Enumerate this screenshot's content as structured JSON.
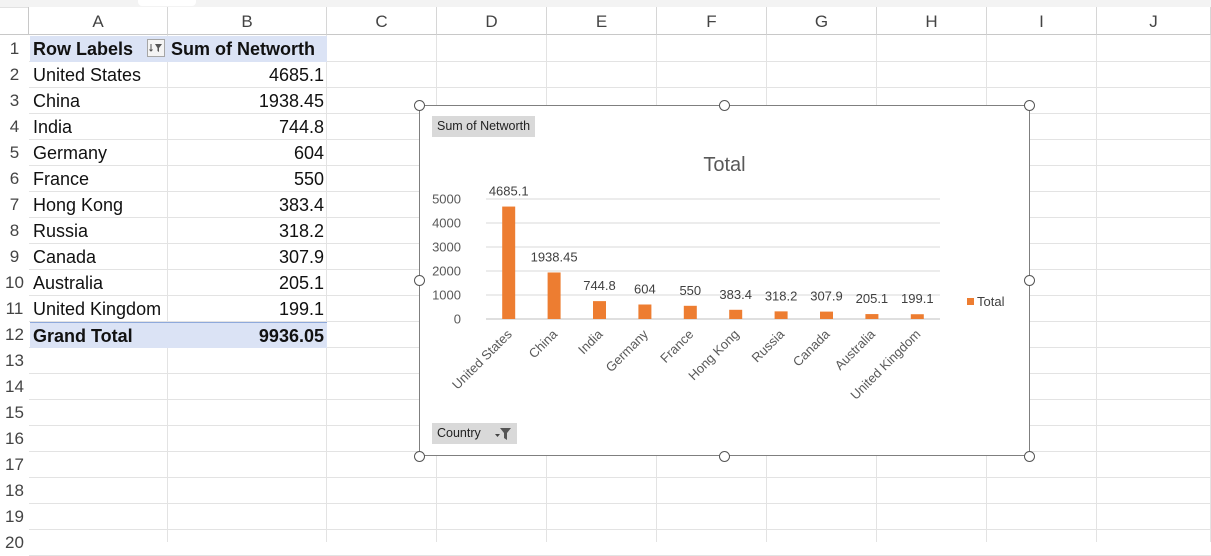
{
  "columns": [
    "A",
    "B",
    "C",
    "D",
    "E",
    "F",
    "G",
    "H",
    "I",
    "J"
  ],
  "rows": [
    "1",
    "2",
    "3",
    "4",
    "5",
    "6",
    "7",
    "8",
    "9",
    "10",
    "11",
    "12",
    "13",
    "14",
    "15",
    "16",
    "17",
    "18",
    "19",
    "20"
  ],
  "pivot": {
    "header": {
      "row_labels": "Row Labels",
      "sum_label": "Sum of Networth"
    },
    "rows": [
      {
        "label": "United States",
        "value": "4685.1"
      },
      {
        "label": "China",
        "value": "1938.45"
      },
      {
        "label": "India",
        "value": "744.8"
      },
      {
        "label": "Germany",
        "value": "604"
      },
      {
        "label": "France",
        "value": "550"
      },
      {
        "label": "Hong Kong",
        "value": "383.4"
      },
      {
        "label": "Russia",
        "value": "318.2"
      },
      {
        "label": "Canada",
        "value": "307.9"
      },
      {
        "label": "Australia",
        "value": "205.1"
      },
      {
        "label": "United Kingdom",
        "value": "199.1"
      }
    ],
    "grand_total": {
      "label": "Grand Total",
      "value": "9936.05"
    }
  },
  "chart": {
    "values_button": "Sum of Networth",
    "axis_button": "Country",
    "legend": "Total"
  },
  "chart_data": {
    "type": "bar",
    "title": "Total",
    "categories": [
      "United States",
      "China",
      "India",
      "Germany",
      "France",
      "Hong Kong",
      "Russia",
      "Canada",
      "Australia",
      "United Kingdom"
    ],
    "series": [
      {
        "name": "Total",
        "values": [
          4685.1,
          1938.45,
          744.8,
          604,
          550,
          383.4,
          318.2,
          307.9,
          205.1,
          199.1
        ]
      }
    ],
    "data_labels": [
      "4685.1",
      "1938.45",
      "744.8",
      "604",
      "550",
      "383.4",
      "318.2",
      "307.9",
      "205.1",
      "199.1"
    ],
    "y_ticks": [
      "0",
      "1000",
      "2000",
      "3000",
      "4000",
      "5000"
    ],
    "ylim": [
      0,
      5000
    ],
    "grid": true,
    "legend_position": "right",
    "colors": {
      "bar": "#ed7d31"
    }
  }
}
